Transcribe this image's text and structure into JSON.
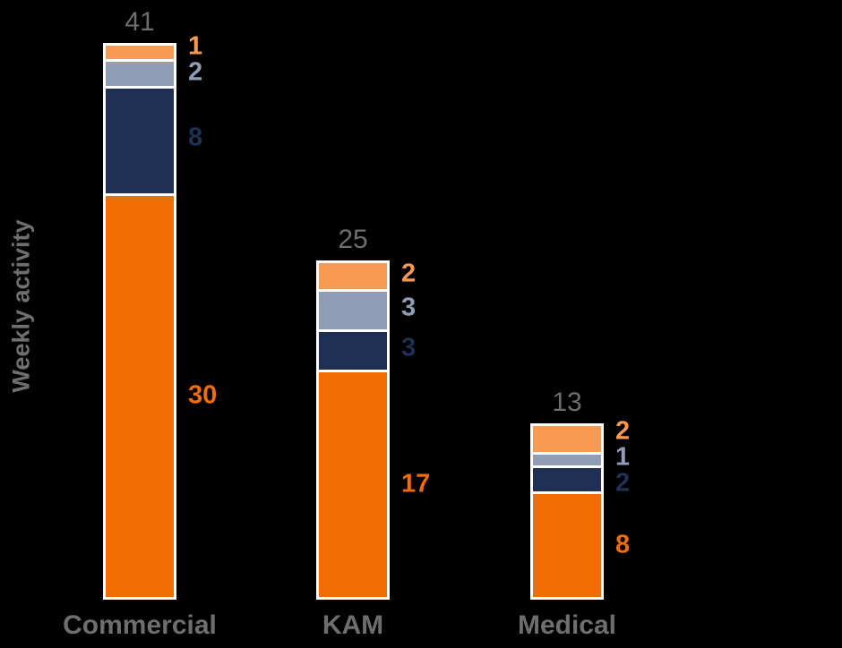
{
  "chart_data": {
    "type": "bar",
    "stacked": true,
    "orientation": "vertical",
    "title": "",
    "xlabel": "",
    "ylabel": "Weekly activity",
    "categories": [
      "Commercial",
      "KAM",
      "Medical"
    ],
    "totals": [
      41,
      25,
      13
    ],
    "series": [
      {
        "name": "primary-orange",
        "color": "#F26C04",
        "values": [
          30,
          17,
          8
        ]
      },
      {
        "name": "dark-navy",
        "color": "#1F3054",
        "values": [
          8,
          3,
          2
        ]
      },
      {
        "name": "blue-gray",
        "color": "#8F9DB6",
        "values": [
          2,
          3,
          1
        ]
      },
      {
        "name": "light-orange",
        "color": "#F79B52",
        "values": [
          1,
          2,
          2
        ]
      }
    ],
    "legend": false,
    "grid": false,
    "axis_lines": false,
    "background": "#000000",
    "bar_outline_color": "#FFFFFF",
    "total_label_color": "#6E6E6E",
    "category_label_color": "#6E6E6E",
    "ylabel_color": "#6F6F6F"
  }
}
